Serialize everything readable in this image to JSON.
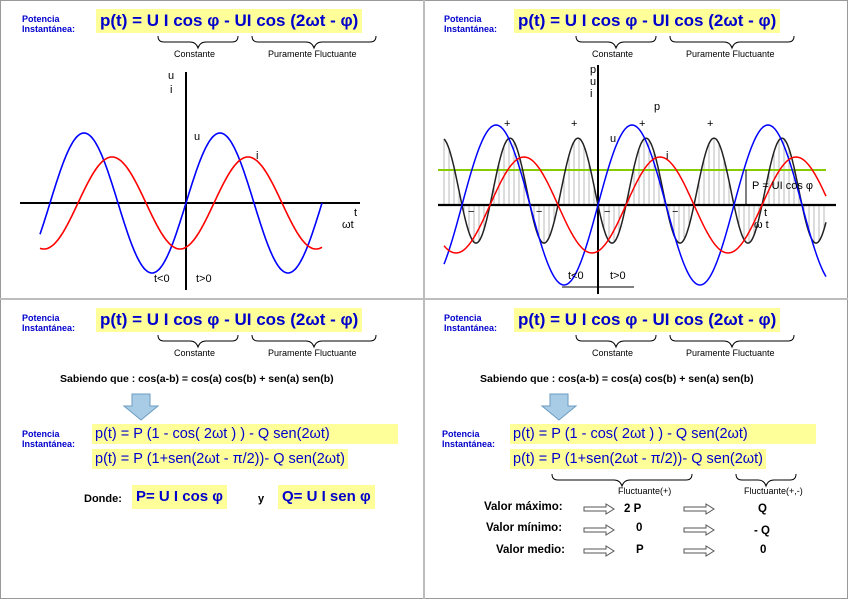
{
  "header": {
    "label_line1": "Potencia",
    "label_line2": "Instantánea:",
    "equation": "p(t) = U I cos φ - UI cos (2ωt - φ)",
    "constante": "Constante",
    "fluctuante": "Puramente Fluctuante"
  },
  "panel1": {
    "u_label": "u",
    "i_label": "i",
    "u_curve_label": "u",
    "i_curve_label": "i",
    "t_label": "t",
    "wt_label": "ωt",
    "t_neg": "t<0",
    "t_pos": "t>0"
  },
  "panel2": {
    "p_label": "p",
    "u_label": "u",
    "i_label": "i",
    "p_curve_label": "p",
    "u_curve_label": "u",
    "i_curve_label": "i",
    "P_label": "P = UI cos φ",
    "t_label": "t",
    "wt_label": "ω t",
    "t_neg": "t<0",
    "t_pos": "t>0",
    "plus": "+",
    "minus": "−"
  },
  "panel3": {
    "sabiendo": "Sabiendo que : cos(a-b) = cos(a) cos(b) + sen(a) sen(b)",
    "eq_line1": "p(t) = P (1 - cos( 2ωt ) )     - Q sen(2ωt)",
    "eq_line2": "p(t) = P (1+sen(2ωt - π/2))- Q sen(2ωt)",
    "donde": "Donde:",
    "P_def": "P= U I cos φ",
    "y": "y",
    "Q_def": "Q= U I sen φ"
  },
  "panel4": {
    "sabiendo": "Sabiendo que : cos(a-b) = cos(a) cos(b) + sen(a) sen(b)",
    "eq_line1": "p(t) = P (1 - cos( 2ωt ) )     - Q sen(2ωt)",
    "eq_line2": "p(t) = P (1+sen(2ωt - π/2))- Q sen(2ωt)",
    "fluct1": "Fluctuante(+)",
    "fluct2": "Fluctuante(+,-)",
    "rows": [
      {
        "label": "Valor máximo:",
        "p": "2 P",
        "q": "Q"
      },
      {
        "label": "Valor mínimo:",
        "p": "0",
        "q": "- Q"
      },
      {
        "label": "Valor medio:",
        "p": "P",
        "q": "0"
      }
    ]
  },
  "colors": {
    "u": "#0000ff",
    "i": "#ff0000",
    "p": "#222222",
    "P_line": "#88cc00",
    "box": "#ffff99",
    "label": "#0000cc"
  }
}
